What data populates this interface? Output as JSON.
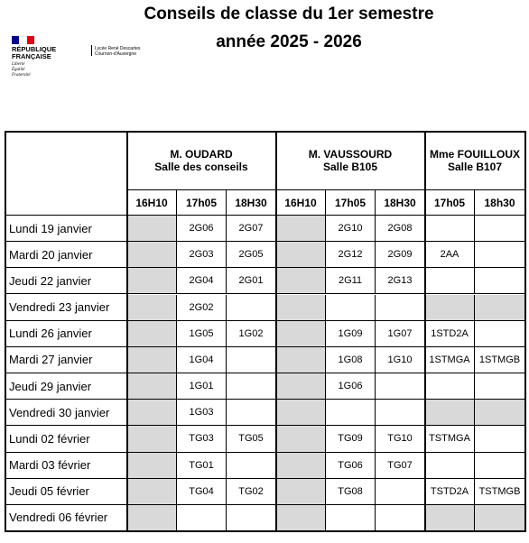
{
  "header": {
    "title": "Conseils de classe du 1er semestre",
    "subtitle": "année 2025 - 2026",
    "logo": {
      "republic": [
        "RÉPUBLIQUE",
        "FRANÇAISE"
      ],
      "motto": [
        "Liberté",
        "Égalité",
        "Fraternité"
      ],
      "school": [
        "Lycée René Descartes",
        "Cournon-d'Auvergne"
      ]
    }
  },
  "table": {
    "groups": [
      {
        "teacher": "M. OUDARD",
        "room": "Salle des conseils",
        "times": [
          "16H10",
          "17h05",
          "18H30"
        ]
      },
      {
        "teacher": "M. VAUSSOURD",
        "room": "Salle B105",
        "times": [
          "16H10",
          "17h05",
          "18H30"
        ]
      },
      {
        "teacher": "Mme FOUILLOUX",
        "room": "Salle B107",
        "times": [
          "17h05",
          "18h30"
        ]
      }
    ],
    "rows": [
      {
        "day": "Lundi 19 janvier",
        "cells": [
          null,
          "2G06",
          "2G07",
          null,
          "2G10",
          "2G08",
          null,
          null
        ]
      },
      {
        "day": "Mardi 20 janvier",
        "cells": [
          null,
          "2G03",
          "2G05",
          null,
          "2G12",
          "2G09",
          "2AA",
          null
        ]
      },
      {
        "day": "Jeudi 22 janvier",
        "cells": [
          null,
          "2G04",
          "2G01",
          null,
          "2G11",
          "2G13",
          null,
          null
        ]
      },
      {
        "day": "Vendredi 23 janvier",
        "cells": [
          null,
          "2G02",
          null,
          null,
          null,
          null,
          null,
          null
        ]
      },
      {
        "day": "Lundi 26 janvier",
        "cells": [
          null,
          "1G05",
          "1G02",
          null,
          "1G09",
          "1G07",
          "1STD2A",
          null
        ]
      },
      {
        "day": "Mardi 27 janvier",
        "cells": [
          null,
          "1G04",
          null,
          null,
          "1G08",
          "1G10",
          "1STMGA",
          "1STMGB"
        ]
      },
      {
        "day": "Jeudi 29 janvier",
        "cells": [
          null,
          "1G01",
          null,
          null,
          "1G06",
          null,
          null,
          null
        ]
      },
      {
        "day": "Vendredi 30 janvier",
        "cells": [
          null,
          "1G03",
          null,
          null,
          null,
          null,
          null,
          null
        ]
      },
      {
        "day": "Lundi 02 février",
        "cells": [
          null,
          "TG03",
          "TG05",
          null,
          "TG09",
          "TG10",
          "TSTMGA",
          null
        ]
      },
      {
        "day": "Mardi 03 février",
        "cells": [
          null,
          "TG01",
          null,
          null,
          "TG06",
          "TG07",
          null,
          null
        ]
      },
      {
        "day": "Jeudi 05 février",
        "cells": [
          null,
          "TG04",
          "TG02",
          null,
          "TG08",
          null,
          "TSTD2A",
          "TSTMGB"
        ]
      },
      {
        "day": "Vendredi 06 février",
        "cells": [
          null,
          null,
          null,
          null,
          null,
          null,
          null,
          null
        ]
      }
    ]
  }
}
